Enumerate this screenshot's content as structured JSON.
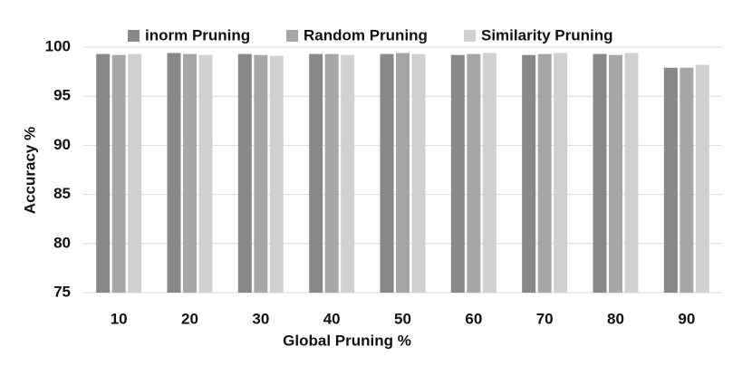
{
  "chart_data": {
    "type": "bar",
    "x_label": "Global Pruning %",
    "y_label": "Accuracy %",
    "categories": [
      "10",
      "20",
      "30",
      "40",
      "50",
      "60",
      "70",
      "80",
      "90"
    ],
    "series": [
      {
        "name": "inorm Pruning",
        "color": "#888888",
        "values": [
          99.3,
          99.4,
          99.3,
          99.3,
          99.3,
          99.2,
          99.2,
          99.3,
          97.9
        ]
      },
      {
        "name": "Random Pruning",
        "color": "#a6a6a6",
        "values": [
          99.2,
          99.3,
          99.2,
          99.3,
          99.4,
          99.3,
          99.3,
          99.2,
          97.9
        ]
      },
      {
        "name": "Similarity Pruning",
        "color": "#d0d0d0",
        "values": [
          99.3,
          99.2,
          99.1,
          99.2,
          99.3,
          99.4,
          99.4,
          99.4,
          98.2
        ]
      }
    ],
    "ylim": [
      75,
      100
    ],
    "yticks": [
      75,
      80,
      85,
      90,
      95,
      100
    ],
    "grid": true,
    "legend": "top"
  }
}
